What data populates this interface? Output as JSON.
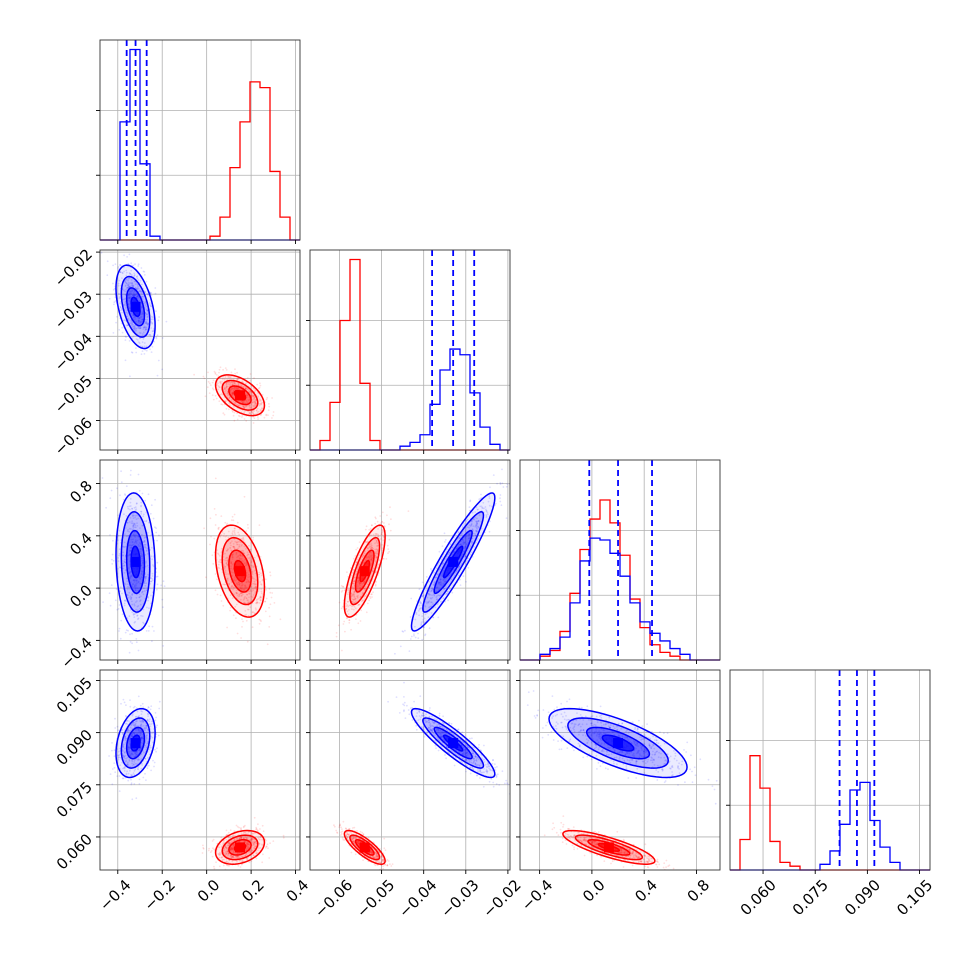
{
  "chart_data": {
    "type": "corner",
    "grid": true,
    "colors": {
      "blue": "#0000ff",
      "red": "#ff0000"
    },
    "parameters": [
      {
        "range": [
          -0.48,
          0.42
        ],
        "ticks": [
          -0.4,
          -0.2,
          0.0,
          0.2,
          0.4
        ],
        "tick_labels": [
          "−0.4",
          "−0.2",
          "0.0",
          "0.2",
          "0.4"
        ]
      },
      {
        "range": [
          -0.067,
          -0.0195
        ],
        "ticks": [
          -0.06,
          -0.05,
          -0.04,
          -0.03,
          -0.02
        ],
        "tick_labels": [
          "−0.06",
          "−0.05",
          "−0.04",
          "−0.03",
          "−0.02"
        ]
      },
      {
        "range": [
          -0.55,
          0.98
        ],
        "ticks": [
          -0.4,
          0.0,
          0.4,
          0.8
        ],
        "tick_labels": [
          "−0.4",
          "0.0",
          "0.4",
          "0.8"
        ]
      },
      {
        "range": [
          0.0505,
          0.108
        ],
        "ticks": [
          0.06,
          0.075,
          0.09,
          0.105
        ],
        "tick_labels": [
          "0.060",
          "0.075",
          "0.090",
          "0.105"
        ]
      }
    ],
    "series": [
      {
        "name": "",
        "color": "#0000ff",
        "mean": [
          -0.32,
          -0.033,
          0.2,
          0.087
        ],
        "std": [
          0.04,
          0.0045,
          0.24,
          0.0045
        ],
        "corr": [
          [
            1,
            -0.45,
            -0.1,
            0.3
          ],
          [
            -0.45,
            1,
            0.93,
            -0.9
          ],
          [
            -0.1,
            0.93,
            1,
            -0.7
          ],
          [
            0.3,
            -0.9,
            -0.7,
            1
          ]
        ],
        "quantiles": [
          [
            -0.36,
            -0.32,
            -0.27
          ],
          [
            -0.038,
            -0.033,
            -0.028
          ],
          [
            -0.02,
            0.2,
            0.46
          ],
          [
            0.082,
            0.087,
            0.092
          ]
        ]
      },
      {
        "name": "",
        "color": "#ff0000",
        "mean": [
          0.15,
          -0.054,
          0.13,
          0.057
        ],
        "std": [
          0.05,
          0.0022,
          0.16,
          0.0022
        ],
        "corr": [
          [
            1,
            -0.5,
            -0.35,
            0.3
          ],
          [
            -0.5,
            1,
            0.75,
            -0.8
          ],
          [
            -0.35,
            0.75,
            1,
            -0.8
          ],
          [
            0.3,
            -0.8,
            -0.8,
            1
          ]
        ],
        "quantiles": []
      }
    ],
    "histograms": [
      {
        "bins": [
          -0.48,
          0.42
        ],
        "blue": [
          0.0,
          0.0,
          0.62,
          1.0,
          0.4,
          0.02,
          0.0,
          0.0,
          0.0,
          0.0,
          0.0,
          0.0,
          0.0,
          0.0,
          0.0,
          0.0,
          0.0,
          0.0,
          0.0,
          0.0
        ],
        "red": [
          0.0,
          0.0,
          0.0,
          0.0,
          0.0,
          0.0,
          0.0,
          0.0,
          0.0,
          0.0,
          0.0,
          0.02,
          0.12,
          0.38,
          0.62,
          0.83,
          0.8,
          0.36,
          0.12,
          0.0
        ]
      },
      {
        "bins": [
          -0.067,
          -0.0195
        ],
        "blue": [
          0.0,
          0.0,
          0.0,
          0.0,
          0.0,
          0.0,
          0.0,
          0.0,
          0.0,
          0.02,
          0.04,
          0.08,
          0.24,
          0.42,
          0.53,
          0.5,
          0.3,
          0.12,
          0.03,
          0.0
        ],
        "red": [
          0.0,
          0.05,
          0.25,
          0.68,
          1.0,
          0.35,
          0.05,
          0.0,
          0.0,
          0.0,
          0.0,
          0.0,
          0.0,
          0.0,
          0.0,
          0.0,
          0.0,
          0.0,
          0.0,
          0.0
        ]
      },
      {
        "bins": [
          -0.55,
          0.98
        ],
        "blue": [
          0.0,
          0.0,
          0.03,
          0.06,
          0.12,
          0.3,
          0.52,
          0.64,
          0.63,
          0.56,
          0.44,
          0.3,
          0.2,
          0.14,
          0.1,
          0.06,
          0.03,
          0.0,
          0.0,
          0.0
        ],
        "red": [
          0.0,
          0.0,
          0.02,
          0.05,
          0.15,
          0.35,
          0.58,
          0.74,
          0.84,
          0.72,
          0.55,
          0.32,
          0.17,
          0.08,
          0.04,
          0.02,
          0.0,
          0.0,
          0.0,
          0.0
        ]
      },
      {
        "bins": [
          0.0505,
          0.108
        ],
        "blue": [
          0.0,
          0.0,
          0.0,
          0.0,
          0.0,
          0.0,
          0.0,
          0.0,
          0.0,
          0.03,
          0.1,
          0.24,
          0.42,
          0.46,
          0.26,
          0.12,
          0.04,
          0.0,
          0.0,
          0.0
        ],
        "red": [
          0.0,
          0.16,
          0.6,
          0.43,
          0.15,
          0.04,
          0.02,
          0.0,
          0.0,
          0.0,
          0.0,
          0.0,
          0.0,
          0.0,
          0.0,
          0.0,
          0.0,
          0.0,
          0.0,
          0.0
        ]
      }
    ],
    "hist_ylim": [
      0,
      1.05
    ],
    "hist_yticks": [
      0.34,
      0.68
    ]
  }
}
